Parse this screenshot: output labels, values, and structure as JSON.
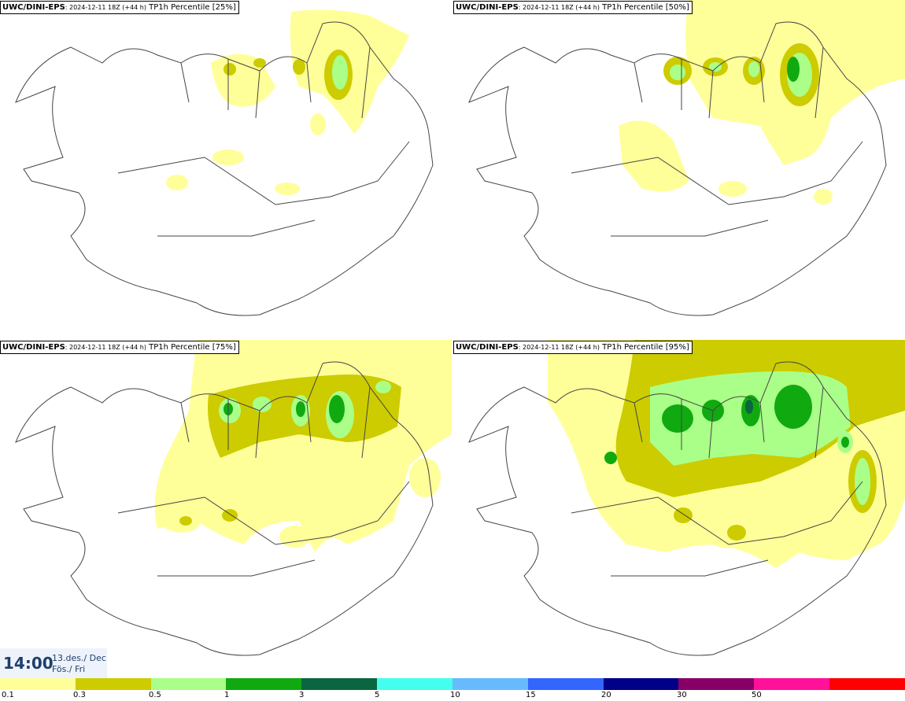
{
  "panels": [
    {
      "model": "UWC/DINI-EPS",
      "run": ": 2024-12-11 18Z (+44 h)",
      "field": " TP1h Percentile [25%]"
    },
    {
      "model": "UWC/DINI-EPS",
      "run": ": 2024-12-11 18Z (+44 h)",
      "field": " TP1h Percentile [50%]"
    },
    {
      "model": "UWC/DINI-EPS",
      "run": ": 2024-12-11 18Z (+44 h)",
      "field": " TP1h Percentile [75%]"
    },
    {
      "model": "UWC/DINI-EPS",
      "run": ": 2024-12-11 18Z (+44 h)",
      "field": " TP1h Percentile [95%]"
    }
  ],
  "valid_time": {
    "time": "14:00",
    "date_line1": "13.des./ Dec",
    "date_line2": "Fös./ Fri"
  },
  "legend": {
    "labels": [
      "0.1",
      "0.3",
      "0.5",
      "1",
      "3",
      "5",
      "10",
      "15",
      "20",
      "30",
      "50"
    ],
    "colors": [
      "#ffff99",
      "#cccc00",
      "#aaff88",
      "#10aa10",
      "#0a6640",
      "#44ffee",
      "#66bbff",
      "#3366ff",
      "#000088",
      "#880066",
      "#ff1199",
      "#ff0000"
    ]
  },
  "colors": {
    "map_line": "#444444",
    "panel_bg": "#ffffff"
  }
}
